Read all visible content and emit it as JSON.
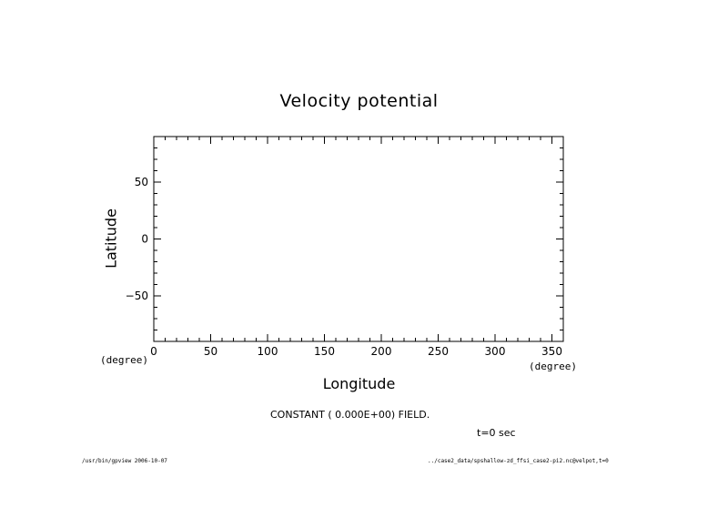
{
  "chart_data": {
    "type": "contour",
    "title": "Velocity potential",
    "subtitle": "",
    "xlabel": "Longitude",
    "ylabel": "Latitude",
    "xunit": "(degree)",
    "yunit": "(degree)",
    "xlim": [
      0,
      360
    ],
    "ylim": [
      -90,
      90
    ],
    "xticks": [
      0,
      50,
      100,
      150,
      200,
      250,
      300,
      350
    ],
    "xtick_labels": [
      "0",
      "50",
      "100",
      "150",
      "200",
      "250",
      "300",
      "350"
    ],
    "xminor_step": 10,
    "yticks": [
      -50,
      0,
      50
    ],
    "ytick_labels": [
      "−50",
      "0",
      "50"
    ],
    "yminor_step": 10,
    "grid": false,
    "series": [],
    "annotations": {
      "message": "CONSTANT ( 0.000E+00) FIELD.",
      "time": "t=0 sec"
    }
  },
  "footer": {
    "left": "/usr/bin/gpview  2006-10-07",
    "right": "../case2_data/spshallow-zd_ffsi_case2-pi2.nc@velpot,t=0"
  },
  "colors": {
    "foreground": "#000000",
    "background": "#ffffff"
  }
}
